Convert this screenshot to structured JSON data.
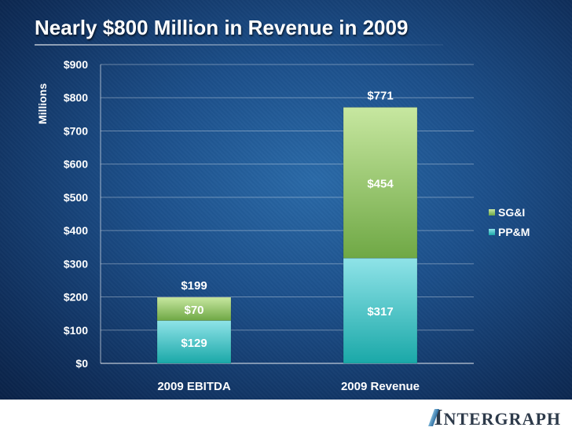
{
  "slide": {
    "title": "Nearly $800 Million in Revenue in 2009",
    "logo": {
      "first_letter": "I",
      "rest": "NTERGRAPH"
    }
  },
  "colors": {
    "ppm_top": "#8fe3e8",
    "ppm_bottom": "#1aa8a8",
    "sgi_top": "#c7e7a0",
    "sgi_bottom": "#6fa845",
    "grid": "#ffffff",
    "text": "#ffffff"
  },
  "chart_data": {
    "type": "bar",
    "stacked": true,
    "title": "Nearly $800 Million in Revenue in 2009",
    "xlabel": "",
    "ylabel": "Millions",
    "ylim": [
      0,
      900
    ],
    "ytick_step": 100,
    "ytick_labels": [
      "$0",
      "$100",
      "$200",
      "$300",
      "$400",
      "$500",
      "$600",
      "$700",
      "$800",
      "$900"
    ],
    "categories": [
      "2009 EBITDA",
      "2009 Revenue"
    ],
    "series": [
      {
        "name": "PP&M",
        "values": [
          129,
          317
        ],
        "labels": [
          "$129",
          "$317"
        ]
      },
      {
        "name": "SG&I",
        "values": [
          70,
          454
        ],
        "labels": [
          "$70",
          "$454"
        ]
      }
    ],
    "totals": [
      199,
      771
    ],
    "total_labels": [
      "$199",
      "$771"
    ],
    "legend": {
      "position": "right",
      "order": [
        "SG&I",
        "PP&M"
      ]
    },
    "grid": true
  }
}
